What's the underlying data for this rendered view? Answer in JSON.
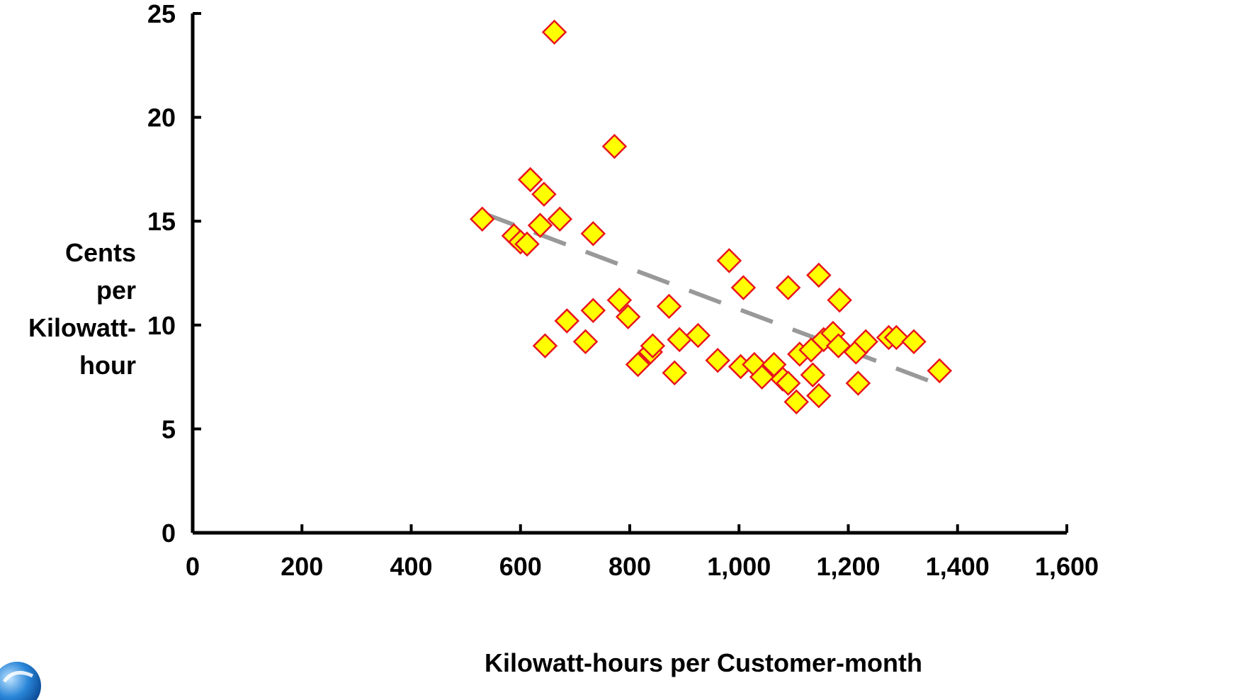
{
  "chart_data": {
    "type": "scatter",
    "title": "",
    "xlabel": "Kilowatt-hours per Customer-month",
    "ylabel_lines": [
      "Cents",
      "per",
      "Kilowatt-",
      "hour"
    ],
    "xlim": [
      0,
      1600
    ],
    "ylim": [
      0,
      25
    ],
    "x_ticks": [
      0,
      200,
      400,
      600,
      800,
      1000,
      1200,
      1400,
      1600
    ],
    "x_tick_labels": [
      "0",
      "200",
      "400",
      "600",
      "800",
      "1,000",
      "1,200",
      "1,400",
      "1,600"
    ],
    "y_ticks": [
      0,
      5,
      10,
      15,
      20,
      25
    ],
    "y_tick_labels": [
      "0",
      "5",
      "10",
      "15",
      "20",
      "25"
    ],
    "grid": false,
    "legend": "none",
    "marker": {
      "shape": "diamond",
      "fill": "#ffff00",
      "stroke": "#e8141c"
    },
    "trendline": {
      "style": "dashed",
      "color": "#999999",
      "x": [
        530,
        1370
      ],
      "y": [
        15.4,
        7.1
      ]
    },
    "series": [
      {
        "points": [
          [
            530,
            15.1
          ],
          [
            588,
            14.3
          ],
          [
            600,
            14.0
          ],
          [
            612,
            13.9
          ],
          [
            618,
            17.0
          ],
          [
            636,
            14.8
          ],
          [
            643,
            16.3
          ],
          [
            645,
            9.0
          ],
          [
            662,
            24.1
          ],
          [
            672,
            15.1
          ],
          [
            685,
            10.2
          ],
          [
            719,
            9.2
          ],
          [
            733,
            10.7
          ],
          [
            733,
            14.4
          ],
          [
            772,
            18.6
          ],
          [
            781,
            11.2
          ],
          [
            797,
            10.4
          ],
          [
            815,
            8.1
          ],
          [
            838,
            8.7
          ],
          [
            842,
            9.0
          ],
          [
            872,
            10.9
          ],
          [
            882,
            7.7
          ],
          [
            891,
            9.3
          ],
          [
            925,
            9.5
          ],
          [
            961,
            8.3
          ],
          [
            982,
            13.1
          ],
          [
            1003,
            8.0
          ],
          [
            1008,
            11.8
          ],
          [
            1028,
            8.1
          ],
          [
            1042,
            7.5
          ],
          [
            1064,
            8.1
          ],
          [
            1080,
            7.4
          ],
          [
            1090,
            7.2
          ],
          [
            1090,
            11.8
          ],
          [
            1105,
            6.3
          ],
          [
            1111,
            8.6
          ],
          [
            1132,
            8.8
          ],
          [
            1135,
            7.6
          ],
          [
            1146,
            6.6
          ],
          [
            1146,
            12.4
          ],
          [
            1155,
            9.3
          ],
          [
            1172,
            9.6
          ],
          [
            1182,
            9.0
          ],
          [
            1184,
            11.2
          ],
          [
            1214,
            8.7
          ],
          [
            1218,
            7.2
          ],
          [
            1232,
            9.2
          ],
          [
            1274,
            9.4
          ],
          [
            1288,
            9.4
          ],
          [
            1320,
            9.2
          ],
          [
            1367,
            7.8
          ]
        ]
      }
    ]
  },
  "colors": {
    "axis": "#000000",
    "marker_fill": "#ffff00",
    "marker_stroke": "#e8141c",
    "trendline": "#999999",
    "logo": "#1e73c8"
  },
  "logo_icon": "globe-logo-icon"
}
